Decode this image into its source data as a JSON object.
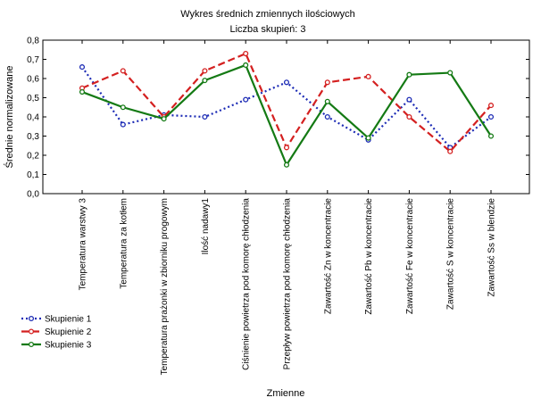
{
  "chart_data": {
    "type": "line",
    "title": "Wykres średnich zmiennych ilościowych",
    "subtitle": "Liczba skupień: 3",
    "xlabel": "Zmienne",
    "ylabel": "Średnie normalizowane",
    "ylim": [
      0.0,
      0.8
    ],
    "yticks": [
      "0,0",
      "0,1",
      "0,2",
      "0,3",
      "0,4",
      "0,5",
      "0,6",
      "0,7",
      "0,8"
    ],
    "grid": false,
    "legend_position": "bottom-left",
    "categories": [
      "Temperatura warstwy 3",
      "Temperatura za kotłem",
      "Temperatura prażonki w zbiorniku progowym",
      "Ilość nadawy1",
      "Ciśnienie powietrza pod komorę chłodzenia",
      "Przepływ powietrza pod komorę chłodzenia",
      "Zawartość Zn w koncentracie",
      "Zawartość Pb w koncentracie",
      "Zawartość Fe w koncentracie",
      "Zawartość S w koncentracie",
      "Zawartość Ss w blendzie"
    ],
    "series": [
      {
        "name": "Skupienie 1",
        "color": "#1c2bb5",
        "dash": "dotted",
        "values": [
          0.66,
          0.36,
          0.41,
          0.4,
          0.49,
          0.58,
          0.4,
          0.28,
          0.49,
          0.24,
          0.4
        ]
      },
      {
        "name": "Skupienie 2",
        "color": "#d42020",
        "dash": "dashed",
        "values": [
          0.55,
          0.64,
          0.4,
          0.64,
          0.73,
          0.24,
          0.58,
          0.61,
          0.4,
          0.22,
          0.46
        ]
      },
      {
        "name": "Skupienie 3",
        "color": "#147a14",
        "dash": "solid",
        "values": [
          0.53,
          0.45,
          0.39,
          0.59,
          0.67,
          0.15,
          0.48,
          0.29,
          0.62,
          0.63,
          0.3
        ]
      }
    ]
  }
}
